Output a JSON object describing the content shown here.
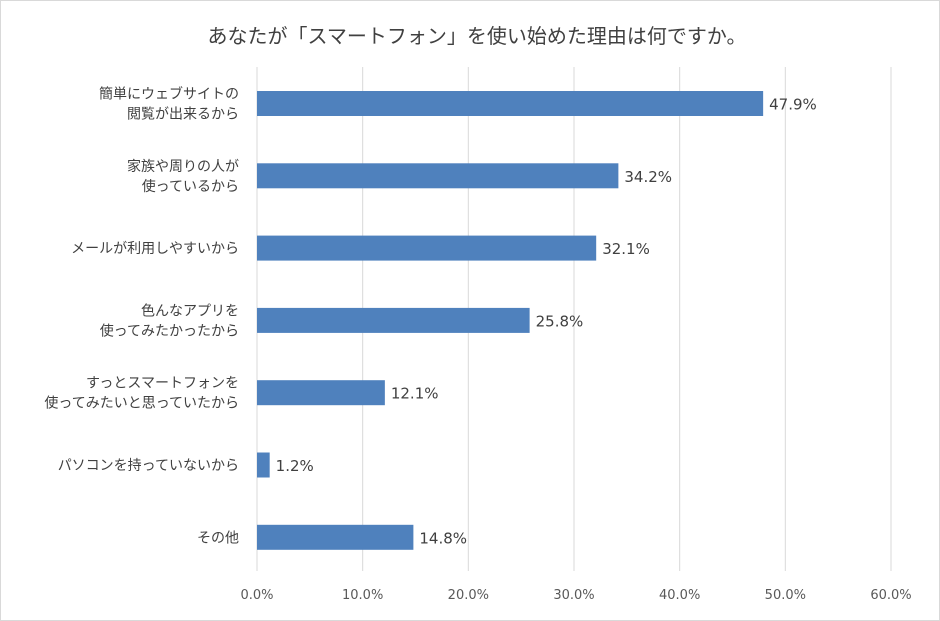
{
  "chart_data": {
    "type": "bar",
    "orientation": "horizontal",
    "title": "あなたが「スマートフォン」を使い始めた理由は何ですか。",
    "categories": [
      [
        "簡単にウェブサイトの",
        "閲覧が出来るから"
      ],
      [
        "家族や周りの人が",
        "使っているから"
      ],
      [
        "メールが利用しやすいから"
      ],
      [
        "色んなアプリを",
        "使ってみたかったから"
      ],
      [
        "すっとスマートフォンを",
        "使ってみたいと思っていたから"
      ],
      [
        "パソコンを持っていないから"
      ],
      [
        "その他"
      ]
    ],
    "values": [
      47.9,
      34.2,
      32.1,
      25.8,
      12.1,
      1.2,
      14.8
    ],
    "value_labels": [
      "47.9%",
      "34.2%",
      "32.1%",
      "25.8%",
      "12.1%",
      "1.2%",
      "14.8%"
    ],
    "xlim": [
      0,
      60
    ],
    "x_ticks": [
      0,
      10,
      20,
      30,
      40,
      50,
      60
    ],
    "x_tick_labels": [
      "0.0%",
      "10.0%",
      "20.0%",
      "30.0%",
      "40.0%",
      "50.0%",
      "60.0%"
    ],
    "bar_color": "#4f81bd",
    "grid": true,
    "grid_color": "#d9d9d9",
    "legend": "none"
  }
}
